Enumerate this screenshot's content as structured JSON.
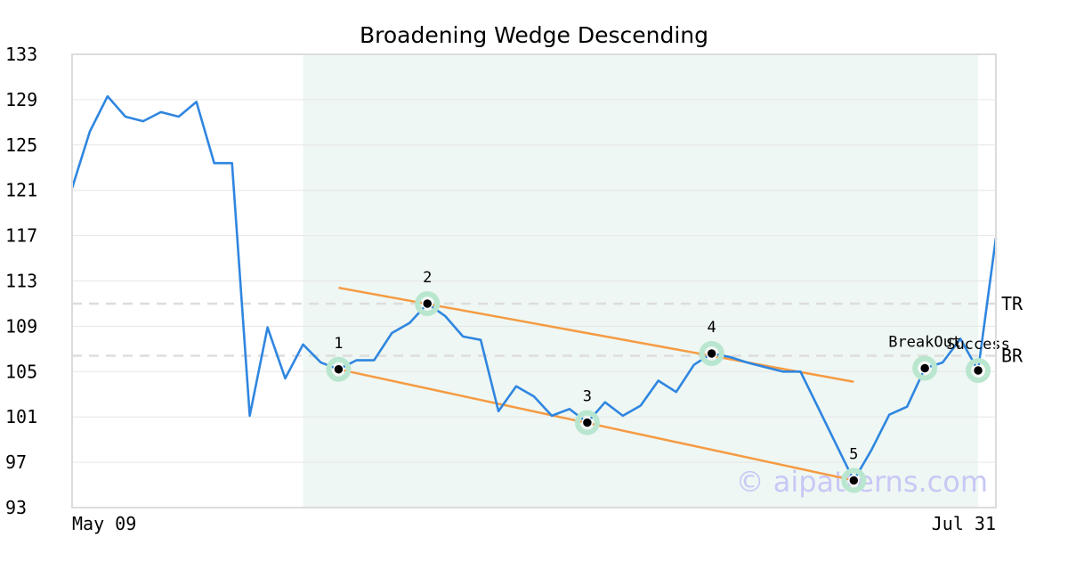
{
  "chart_data": {
    "type": "line",
    "title": "Broadening Wedge Descending",
    "ylim": [
      93,
      133
    ],
    "y_ticks": [
      "93",
      "97",
      "101",
      "105",
      "109",
      "113",
      "117",
      "121",
      "125",
      "129",
      "133"
    ],
    "x_tick_labels": [
      "May 09",
      "Jul 31"
    ],
    "grid": true,
    "series": [
      {
        "values": [
          121.2,
          126.2,
          129.3,
          127.5,
          127.1,
          127.9,
          127.5,
          128.8,
          123.4,
          123.4,
          101.1,
          108.9,
          104.4,
          107.4,
          105.8,
          105.2,
          106.0,
          106.0,
          108.4,
          109.3,
          111.0,
          109.9,
          108.1,
          107.8,
          101.5,
          103.7,
          102.8,
          101.1,
          101.7,
          100.5,
          102.3,
          101.1,
          102.0,
          104.2,
          103.2,
          105.6,
          106.6,
          106.3,
          105.8,
          105.4,
          105.0,
          105.0,
          101.8,
          98.6,
          95.4,
          98.1,
          101.2,
          101.9,
          105.3,
          105.8,
          107.9,
          105.1,
          116.8
        ],
        "color": "#2f86e0"
      }
    ],
    "highlight_region": {
      "from_index": 13,
      "to_index": 51,
      "color": "#eef7f3"
    },
    "trendlines": [
      {
        "from_index": 15,
        "from_value": 112.4,
        "to_index": 44,
        "to_value": 104.1,
        "color": "#f59b43"
      },
      {
        "from_index": 15,
        "from_value": 105.2,
        "to_index": 44,
        "to_value": 95.4,
        "color": "#f59b43"
      }
    ],
    "pattern_points": [
      {
        "label": "1",
        "index": 15,
        "value": 105.2
      },
      {
        "label": "2",
        "index": 20,
        "value": 111.0
      },
      {
        "label": "3",
        "index": 29,
        "value": 100.5
      },
      {
        "label": "4",
        "index": 36,
        "value": 106.6
      },
      {
        "label": "5",
        "index": 44,
        "value": 95.4
      },
      {
        "label": "BreakOut",
        "index": 48,
        "value": 105.3
      },
      {
        "label": "Success",
        "index": 51,
        "value": 105.1
      }
    ],
    "levels": [
      {
        "label": "TR",
        "value": 111.0
      },
      {
        "label": "BR",
        "value": 106.4
      }
    ],
    "watermark": "© aipatterns.com"
  }
}
